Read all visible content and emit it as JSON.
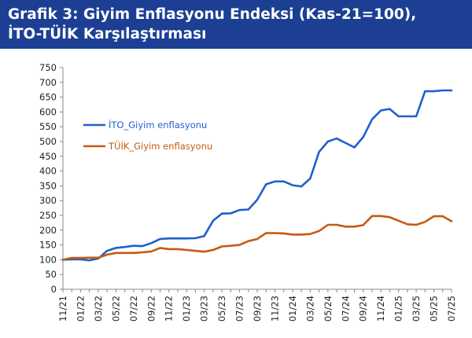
{
  "header": {
    "title_line1": "Grafik 3: Giyim Enflasyonu Endeksi (Kas-21=100),",
    "title_line2": "İTO-TÜİK Karşılaştırması",
    "background": "#1c3f94"
  },
  "chart_data": {
    "type": "line",
    "title": "Grafik 3: Giyim Enflasyonu Endeksi (Kas-21=100), İTO-TÜİK Karşılaştırması",
    "xlabel": "",
    "ylabel": "",
    "ylim": [
      0,
      750
    ],
    "yticks": [
      0,
      50,
      100,
      150,
      200,
      250,
      300,
      350,
      400,
      450,
      500,
      550,
      600,
      650,
      700,
      750
    ],
    "grid": false,
    "legend_position": "upper-left",
    "x_tick_labels": [
      "11/21",
      "01/22",
      "03/22",
      "05/22",
      "07/22",
      "09/22",
      "11/22",
      "01/23",
      "03/23",
      "05/23",
      "07/23",
      "09/23",
      "11/23",
      "01/24",
      "03/24",
      "05/24",
      "07/24",
      "09/24",
      "11/24",
      "01/25",
      "03/25",
      "05/25",
      "07/25"
    ],
    "categories": [
      "11/21",
      "12/21",
      "01/22",
      "02/22",
      "03/22",
      "04/22",
      "05/22",
      "06/22",
      "07/22",
      "08/22",
      "09/22",
      "10/22",
      "11/22",
      "12/22",
      "01/23",
      "02/23",
      "03/23",
      "04/23",
      "05/23",
      "06/23",
      "07/23",
      "08/23",
      "09/23",
      "10/23",
      "11/23",
      "12/23",
      "01/24",
      "02/24",
      "03/24",
      "04/24",
      "05/24",
      "06/24",
      "07/24",
      "08/24",
      "09/24",
      "10/24",
      "11/24",
      "12/24",
      "01/25",
      "02/25",
      "03/25",
      "04/25",
      "05/25",
      "06/25",
      "07/25"
    ],
    "series": [
      {
        "name": "İTO_Giyim enflasyonu",
        "color": "#1f5fcf",
        "values": [
          100,
          101,
          101,
          98,
          104,
          130,
          140,
          143,
          147,
          146,
          156,
          170,
          172,
          172,
          172,
          173,
          180,
          232,
          256,
          257,
          268,
          270,
          303,
          355,
          365,
          365,
          352,
          348,
          375,
          465,
          500,
          510,
          495,
          480,
          515,
          575,
          605,
          610,
          585,
          585,
          585,
          670,
          670,
          673,
          673
        ]
      },
      {
        "name": "TÜİK_Giyim enflasyonu",
        "color": "#c55a11",
        "values": [
          100,
          106,
          106,
          107,
          107,
          117,
          123,
          123,
          123,
          125,
          128,
          140,
          136,
          136,
          133,
          130,
          127,
          133,
          145,
          147,
          150,
          163,
          170,
          190,
          190,
          189,
          185,
          185,
          187,
          197,
          218,
          218,
          212,
          212,
          217,
          248,
          248,
          244,
          232,
          220,
          218,
          228,
          247,
          247,
          230
        ]
      }
    ]
  }
}
